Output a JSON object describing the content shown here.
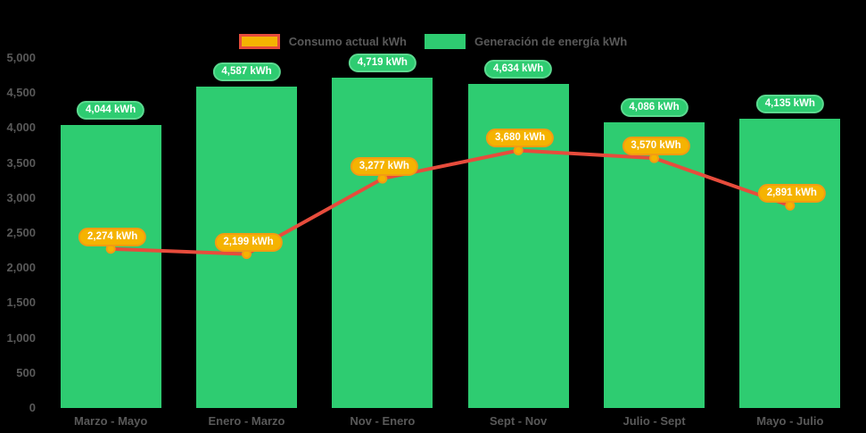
{
  "legend": {
    "consumo": {
      "label": "Consumo actual kWh"
    },
    "generacion": {
      "label": "Generación de energía kWh"
    }
  },
  "colors": {
    "background": "#000000",
    "bar_green": "#2ECC71",
    "bar_pill_fill": "#2ECC71",
    "bar_pill_border": "#5BD98F",
    "line_red": "#E74C3C",
    "gold": "#F5B301",
    "gold_border": "#F39C12",
    "axis_text": "#595959",
    "pill_text": "#FFFFFF"
  },
  "chart_data": {
    "type": "bar+line",
    "title": "",
    "categories": [
      "Marzo - Mayo",
      "Enero - Marzo",
      "Nov - Enero",
      "Sept - Nov",
      "Julio - Sept",
      "Mayo - Julio"
    ],
    "series": [
      {
        "name": "Generación de energía kWh",
        "type": "bar",
        "color": "#2ECC71",
        "values": [
          4044,
          4587,
          4719,
          4634,
          4086,
          4135
        ],
        "value_labels": [
          "4,044 kWh",
          "4,587 kWh",
          "4,719 kWh",
          "4,634 kWh",
          "4,086 kWh",
          "4,135 kWh"
        ]
      },
      {
        "name": "Consumo actual kWh",
        "type": "line",
        "color": "#E74C3C",
        "marker_color": "#F5B301",
        "values": [
          2274,
          2199,
          3277,
          3680,
          3570,
          2891
        ],
        "value_labels": [
          "2,274 kWh",
          "2,199 kWh",
          "3,277 kWh",
          "3,680 kWh",
          "3,570 kWh",
          "2,891 kWh"
        ]
      }
    ],
    "ylim": [
      0,
      5000
    ],
    "ytick_step": 500,
    "ytick_labels": [
      "0",
      "500",
      "1,000",
      "1,500",
      "2,000",
      "2,500",
      "3,000",
      "3,500",
      "4,000",
      "4,500",
      "5,000"
    ],
    "grid": false,
    "legend_position": "top"
  }
}
